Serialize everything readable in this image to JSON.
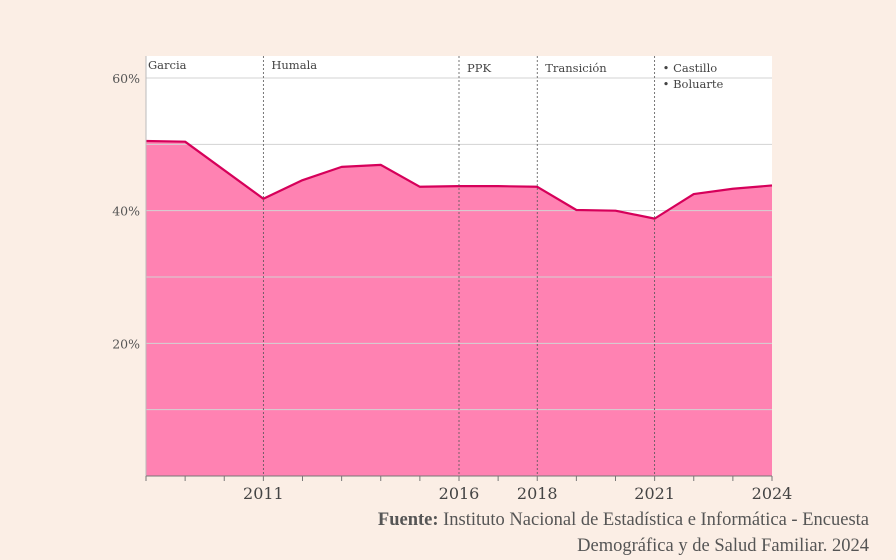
{
  "chart_data": {
    "type": "area",
    "x": [
      2008,
      2009,
      2011,
      2012,
      2013,
      2014,
      2015,
      2016,
      2017,
      2018,
      2019,
      2020,
      2021,
      2022,
      2023,
      2024
    ],
    "values": [
      50.5,
      50.4,
      41.8,
      44.6,
      46.6,
      46.9,
      43.6,
      43.7,
      43.7,
      43.6,
      40.1,
      40.0,
      38.8,
      42.5,
      43.3,
      43.8
    ],
    "xlim": [
      2008,
      2024
    ],
    "ylim": [
      0,
      60
    ],
    "y_ticks": [
      {
        "value": 60,
        "label": "60%"
      },
      {
        "value": 40,
        "label": "40%"
      },
      {
        "value": 20,
        "label": "20%"
      }
    ],
    "y_gridlines": [
      0,
      10,
      20,
      30,
      40,
      50,
      60
    ],
    "x_tick_labels": [
      "2011",
      "2016",
      "2018",
      "2021",
      "2024"
    ],
    "periods": [
      {
        "start": 2008,
        "labels": [
          "Garcia"
        ]
      },
      {
        "start": 2011,
        "labels": [
          "Humala"
        ]
      },
      {
        "start": 2016,
        "labels": [
          "PPK"
        ]
      },
      {
        "start": 2018,
        "labels": [
          "Transición"
        ]
      },
      {
        "start": 2021,
        "labels": [
          "• Castillo",
          "• Boluarte"
        ]
      }
    ],
    "colors": {
      "fill": "#ff82b2",
      "line": "#d6005a",
      "background": "#fbeee5",
      "plot_bg": "#ffffff",
      "grid": "#d3d3d3"
    }
  },
  "source": {
    "prefix": "Fuente:",
    "text": "Instituto Nacional de Estadística e Informática - Encuesta Demográfica y de Salud Familiar. 2024"
  }
}
